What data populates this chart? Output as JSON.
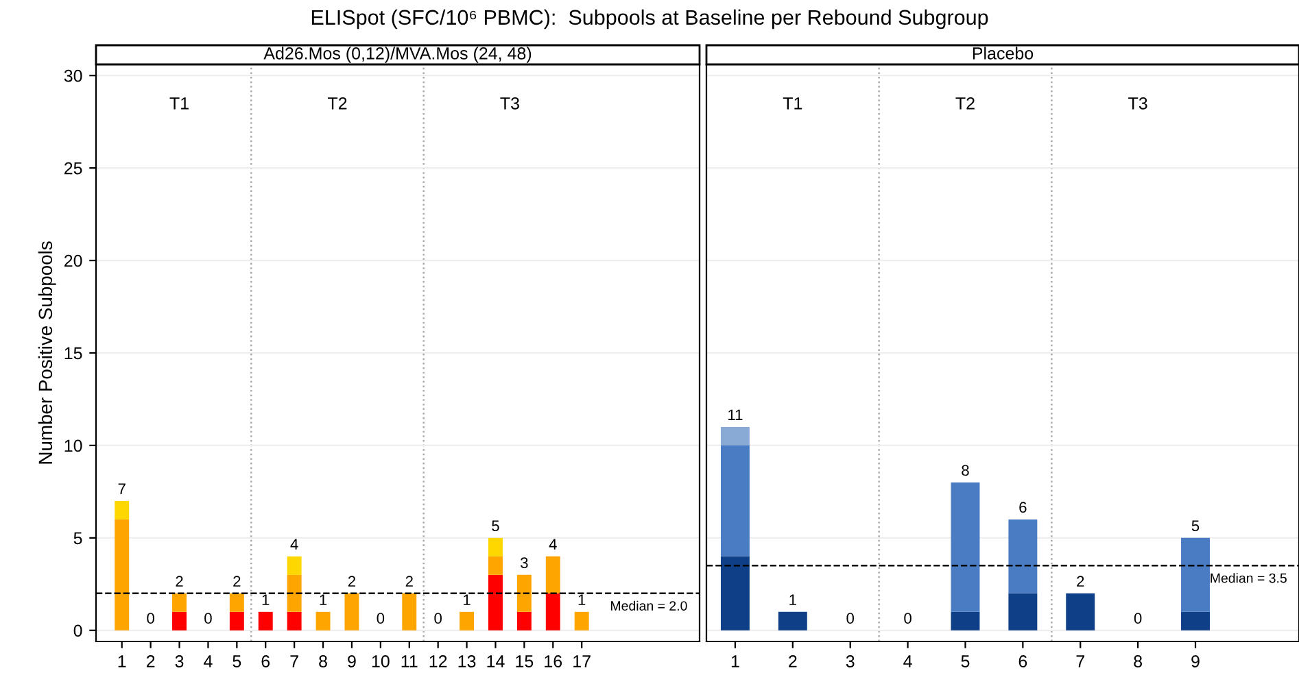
{
  "chart_data": [
    {
      "type": "bar",
      "stacked": true,
      "title": "ELISpot (SFC/10⁶ PBMC):  Subpools at Baseline per Rebound Subgroup",
      "subtitle": "Ad26.Mos (0,12)/MVA.Mos (24, 48)",
      "ylabel": "Number Positive Subpools",
      "x": [
        1,
        2,
        3,
        4,
        5,
        6,
        7,
        8,
        9,
        10,
        11,
        12,
        13,
        14,
        15,
        16,
        17
      ],
      "series": [
        {
          "color": "#ff0000",
          "values": [
            0,
            0,
            1,
            0,
            1,
            1,
            1,
            0,
            0,
            0,
            0,
            0,
            0,
            3,
            1,
            2,
            0
          ]
        },
        {
          "color": "#ffa500",
          "values": [
            6,
            0,
            1,
            0,
            1,
            0,
            2,
            1,
            2,
            0,
            2,
            0,
            1,
            1,
            2,
            2,
            1
          ]
        },
        {
          "color": "#ffd700",
          "values": [
            1,
            0,
            0,
            0,
            0,
            0,
            1,
            0,
            0,
            0,
            0,
            0,
            0,
            1,
            0,
            0,
            0
          ]
        }
      ],
      "totals": [
        "7",
        "0",
        "2",
        "0",
        "2",
        "1",
        "4",
        "1",
        "2",
        "0",
        "2",
        "0",
        "1",
        "5",
        "3",
        "4",
        "1"
      ],
      "xlim": [
        0.1,
        21.1
      ],
      "xticks": [
        1,
        2,
        3,
        4,
        5,
        6,
        7,
        8,
        9,
        10,
        11,
        12,
        13,
        14,
        15,
        16,
        17
      ],
      "ylim": [
        -0.6,
        30.6
      ],
      "yticks": [
        0,
        5,
        10,
        15,
        20,
        25,
        30
      ],
      "grid": "y",
      "ref_lines": [
        {
          "axis": "y",
          "value": 2.0,
          "label": "Median = 2.0",
          "line_style": "dashed",
          "color": "#000000"
        },
        {
          "axis": "x",
          "value": 5.5,
          "line_style": "dotted",
          "color": "#aaaaaa"
        },
        {
          "axis": "x",
          "value": 11.5,
          "line_style": "dotted",
          "color": "#aaaaaa"
        }
      ],
      "annotations": [
        "T1",
        "T2",
        "T3"
      ]
    },
    {
      "type": "bar",
      "stacked": true,
      "subtitle": "Placebo",
      "x": [
        1,
        2,
        3,
        4,
        5,
        6,
        7,
        8,
        9
      ],
      "series": [
        {
          "color": "#0f3f87",
          "values": [
            4,
            1,
            0,
            0,
            1,
            2,
            2,
            0,
            1
          ]
        },
        {
          "color": "#4a7cc4",
          "values": [
            6,
            0,
            0,
            0,
            7,
            4,
            0,
            0,
            4
          ]
        },
        {
          "color": "#8aaad6",
          "values": [
            1,
            0,
            0,
            0,
            0,
            0,
            0,
            0,
            0
          ]
        }
      ],
      "totals": [
        "11",
        "1",
        "0",
        "0",
        "8",
        "6",
        "2",
        "0",
        "5"
      ],
      "xlim": [
        0.5,
        10.8
      ],
      "xticks": [
        1,
        2,
        3,
        4,
        5,
        6,
        7,
        8,
        9
      ],
      "ylim": [
        -0.6,
        30.6
      ],
      "yticks": [
        0,
        5,
        10,
        15,
        20,
        25,
        30
      ],
      "grid": "y",
      "tick_labels": "x",
      "ref_lines": [
        {
          "axis": "y",
          "value": 3.5,
          "label": "Median = 3.5",
          "line_style": "dashed",
          "color": "#000000"
        },
        {
          "axis": "x",
          "value": 3.5,
          "line_style": "dotted",
          "color": "#aaaaaa"
        },
        {
          "axis": "x",
          "value": 6.5,
          "line_style": "dotted",
          "color": "#aaaaaa"
        }
      ],
      "annotations": [
        "T1",
        "T2",
        "T3"
      ]
    }
  ]
}
